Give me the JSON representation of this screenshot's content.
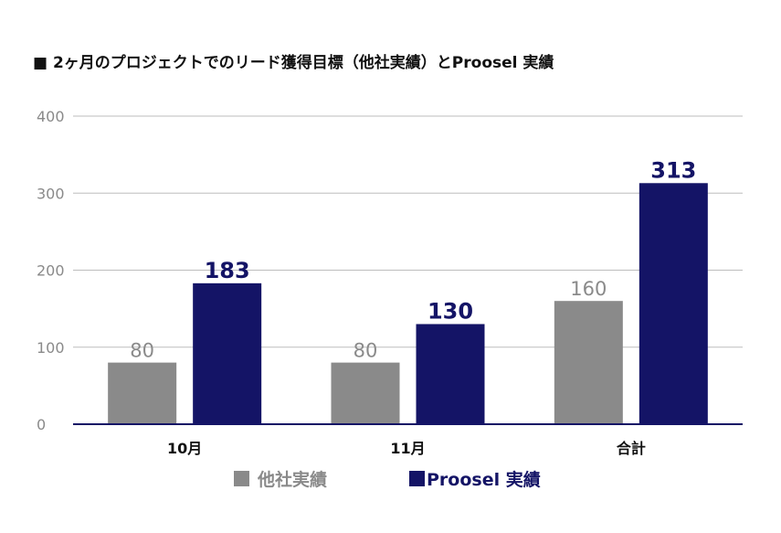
{
  "chart_data": {
    "type": "bar",
    "title": "■ 2ヶ月のプロジェクトでのリード獲得目標（他社実績）とProosel 実績",
    "categories": [
      "10月",
      "11月",
      "合計"
    ],
    "series": [
      {
        "name": "他社実績",
        "values": [
          80,
          80,
          160
        ],
        "color": "#8a8a8a"
      },
      {
        "name": "Proosel 実績",
        "values": [
          183,
          130,
          313
        ],
        "color": "#141466"
      }
    ],
    "ylim": [
      0,
      400
    ],
    "yticks": [
      0,
      100,
      200,
      300,
      400
    ],
    "grid": true,
    "legend": "bottom-center"
  }
}
